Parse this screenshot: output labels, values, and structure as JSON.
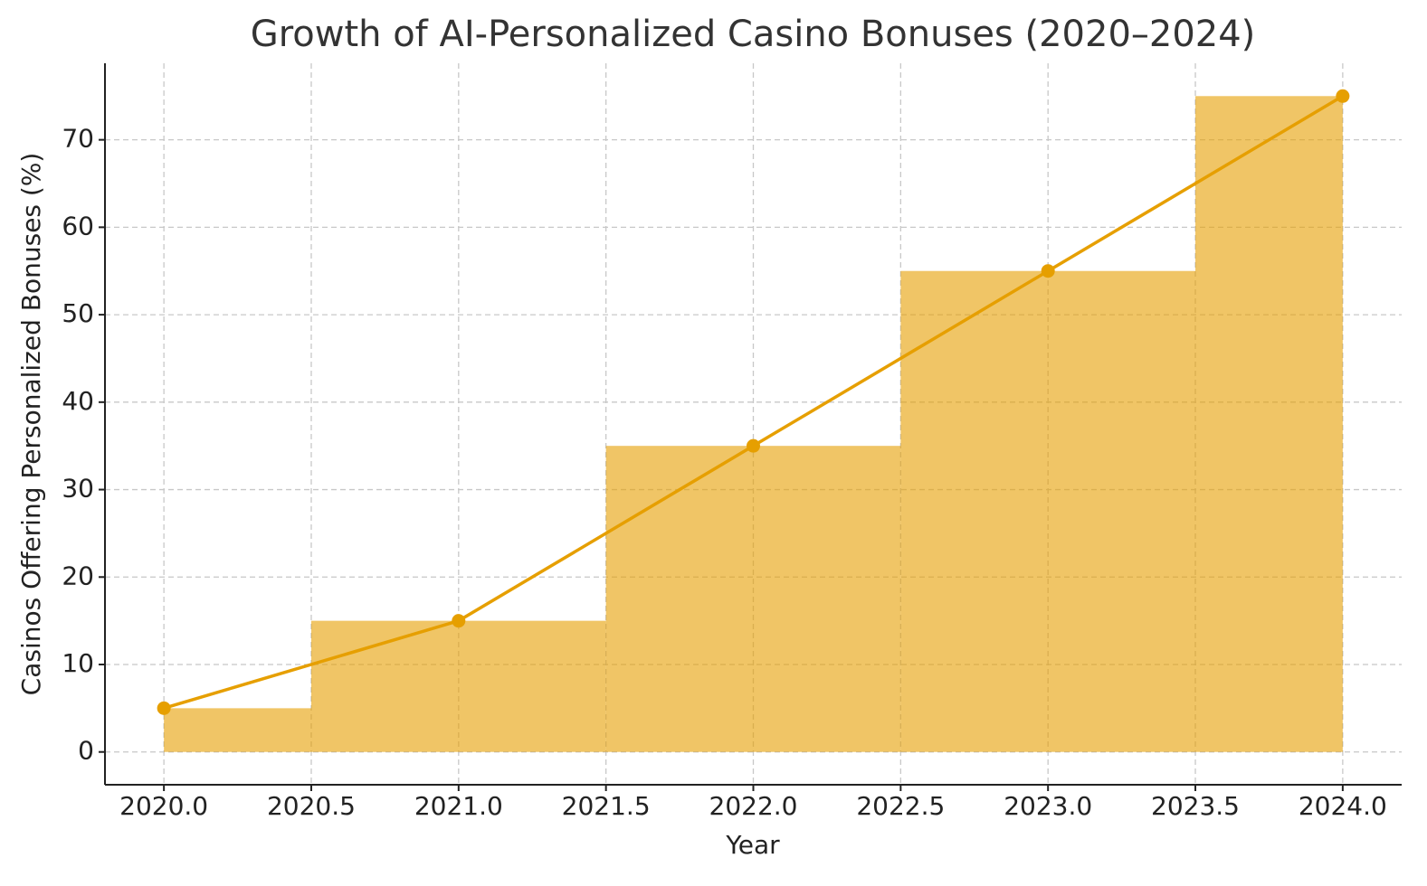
{
  "chart_data": {
    "type": "line",
    "title": "Growth of AI-Personalized Casino Bonuses (2020–2024)",
    "x_label": "Year",
    "y_label": "Casinos Offering Personalized Bonuses (%)",
    "x": [
      2020,
      2021,
      2022,
      2023,
      2024
    ],
    "series": [
      {
        "name": "Casinos Offering Personalized Bonuses",
        "color": "#e69f00",
        "values": [
          5,
          15,
          35,
          55,
          75
        ]
      }
    ],
    "step_fill": true,
    "fill_opacity": 0.6,
    "xlim": [
      2019.8,
      2024.2
    ],
    "xticks": [
      {
        "value": 2020,
        "label": "2020.0"
      },
      2020.5,
      {
        "value": 2021,
        "label": "2021.0"
      },
      2021.5,
      {
        "value": 2022,
        "label": "2022.0"
      },
      2022.5,
      {
        "value": 2023,
        "label": "2023.0"
      },
      2023.5,
      {
        "value": 2024,
        "label": "2024.0"
      }
    ],
    "ylim": [
      -3.75,
      78.75
    ],
    "yticks": [
      0,
      10,
      20,
      30,
      40,
      50,
      60,
      70
    ],
    "grid": true
  }
}
